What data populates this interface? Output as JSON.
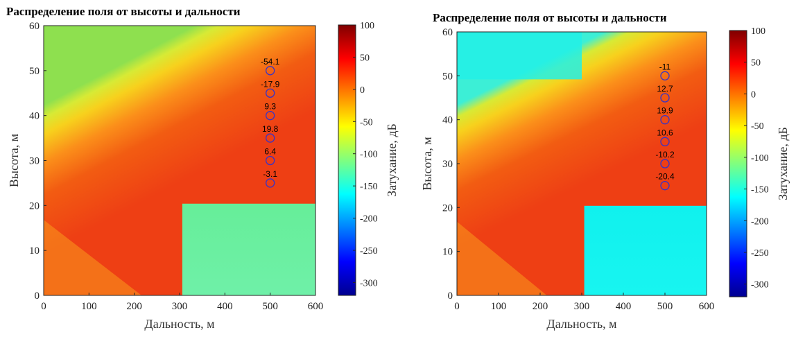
{
  "chart_data": [
    {
      "type": "heatmap",
      "title": "Распределение поля от высоты и дальности",
      "xlabel": "Дальность, м",
      "ylabel": "Высота, м",
      "xlim": [
        0,
        600
      ],
      "ylim": [
        0,
        60
      ],
      "x_ticks": [
        "0",
        "100",
        "200",
        "300",
        "400",
        "500",
        "600"
      ],
      "y_ticks": [
        "0",
        "10",
        "20",
        "30",
        "40",
        "50",
        "60"
      ],
      "colorbar": {
        "label": "Затухание, дБ",
        "range": [
          -320,
          100
        ],
        "ticks": [
          "100",
          "50",
          "0",
          "-50",
          "-100",
          "-150",
          "-200",
          "-250",
          "-300"
        ],
        "colormap": "jet"
      },
      "points": [
        {
          "x": 500,
          "y": 50,
          "label": "-54.1"
        },
        {
          "x": 500,
          "y": 45,
          "label": "-17.9"
        },
        {
          "x": 500,
          "y": 40,
          "label": "9.3"
        },
        {
          "x": 500,
          "y": 35,
          "label": "19.8"
        },
        {
          "x": 500,
          "y": 30,
          "label": "6.4"
        },
        {
          "x": 500,
          "y": 25,
          "label": "-3.1"
        }
      ]
    },
    {
      "type": "heatmap",
      "title": "Распределение поля от высоты и дальности",
      "xlabel": "Дальность, м",
      "ylabel": "Высота, м",
      "xlim": [
        0,
        600
      ],
      "ylim": [
        0,
        60
      ],
      "x_ticks": [
        "0",
        "100",
        "200",
        "300",
        "400",
        "500",
        "600"
      ],
      "y_ticks": [
        "0",
        "10",
        "20",
        "30",
        "40",
        "50",
        "60"
      ],
      "colorbar": {
        "label": "Затухание, дБ",
        "range": [
          -320,
          100
        ],
        "ticks": [
          "100",
          "50",
          "0",
          "-50",
          "-100",
          "-150",
          "-200",
          "-250",
          "-300"
        ],
        "colormap": "jet"
      },
      "points": [
        {
          "x": 500,
          "y": 50,
          "label": "-11"
        },
        {
          "x": 500,
          "y": 45,
          "label": "12.7"
        },
        {
          "x": 500,
          "y": 40,
          "label": "19.9"
        },
        {
          "x": 500,
          "y": 35,
          "label": "10.6"
        },
        {
          "x": 500,
          "y": 30,
          "label": "-10.2"
        },
        {
          "x": 500,
          "y": 25,
          "label": "-20.4"
        }
      ]
    }
  ]
}
